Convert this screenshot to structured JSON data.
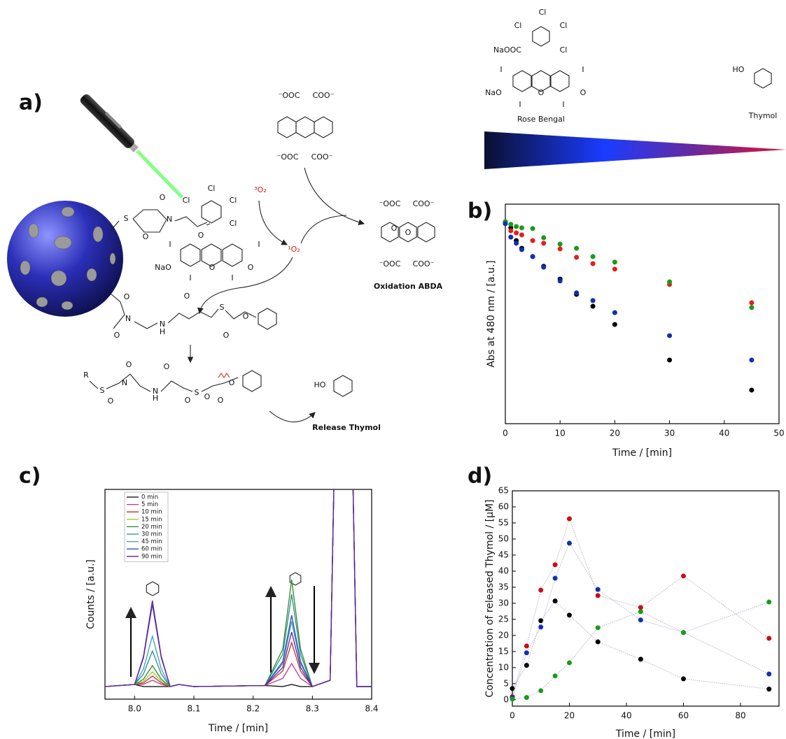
{
  "panels": [
    "a)",
    "b)",
    "c)",
    "d)"
  ],
  "scheme": {
    "labels": [
      "Cl",
      "Cl",
      "Cl",
      "NaOOC",
      "Cl",
      "I",
      "I",
      "NaO",
      "O",
      "O",
      "I",
      "I",
      "Rose Bengal",
      "HO",
      "Thymol",
      "⁻OOC",
      "COO⁻",
      "⁻OOC",
      "COO⁻",
      "⁻OOC",
      "COO⁻",
      "O",
      "O",
      "⁻OOC",
      "COO⁻",
      "Oxidation ABDA",
      "³O₂",
      "¹O₂",
      "Cl",
      "Cl",
      "Cl",
      "Cl",
      "I",
      "I",
      "NaO",
      "O",
      "O",
      "I",
      "I",
      "S",
      "O",
      "N",
      "O",
      "O",
      "O",
      "N",
      "O",
      "N",
      "H",
      "O",
      "S",
      "O",
      "O",
      "R",
      "S",
      "O",
      "N",
      "O",
      "N",
      "H",
      "O",
      "S",
      "O",
      "O",
      "O",
      "O",
      "HO",
      "Release Thymol"
    ]
  },
  "chart_data": [
    {
      "type": "scatter",
      "x_label": "Time / [min]",
      "y_label": "Abs at 480 nm / [a.u.]",
      "x": [
        0,
        1,
        2,
        3,
        5,
        7,
        10,
        13,
        16,
        20,
        30,
        45
      ],
      "series": [
        {
          "color": "#000000",
          "values": [
            0.917,
            0.892,
            0.834,
            0.799,
            0.761,
            0.717,
            0.659,
            0.589,
            0.535,
            0.452,
            0.29,
            0.153
          ]
        },
        {
          "color": "#e0201b",
          "values": [
            0.911,
            0.879,
            0.869,
            0.86,
            0.834,
            0.822,
            0.796,
            0.758,
            0.729,
            0.704,
            0.634,
            0.551
          ]
        },
        {
          "color": "#1a9a1a",
          "values": [
            0.92,
            0.908,
            0.898,
            0.892,
            0.889,
            0.847,
            0.818,
            0.799,
            0.761,
            0.736,
            0.646,
            0.529
          ]
        },
        {
          "color": "#1030b0",
          "values": [
            0.911,
            0.85,
            0.822,
            0.793,
            0.761,
            0.713,
            0.65,
            0.596,
            0.561,
            0.506,
            0.401,
            0.29
          ]
        }
      ],
      "xlim": [
        0,
        50
      ],
      "xticks": [
        0,
        10,
        20,
        30,
        40,
        50
      ],
      "ylim": [
        0,
        1
      ]
    },
    {
      "type": "line",
      "x_label": "Time / [min]",
      "y_label": "Counts / [a.u.]",
      "x": [
        7.95,
        8.0,
        8.015,
        8.03,
        8.045,
        8.06,
        8.075,
        8.1,
        8.22,
        8.25,
        8.265,
        8.28,
        8.3,
        8.33,
        8.343,
        8.362,
        8.375,
        8.4
      ],
      "series": [
        {
          "name": "0 min",
          "color": "#000000",
          "values": [
            6,
            7,
            6,
            6,
            6,
            6,
            7,
            6,
            6.5,
            6,
            7,
            6,
            6,
            9,
            200,
            200,
            6,
            6
          ]
        },
        {
          "name": "5 min",
          "color": "#c2378a",
          "values": [
            6,
            7,
            7.1,
            9,
            7.1,
            6,
            7,
            6,
            6.5,
            9.9,
            17,
            9.9,
            6,
            9,
            200,
            200,
            6,
            6
          ]
        },
        {
          "name": "10 min",
          "color": "#c0302a",
          "values": [
            6,
            7,
            7.8,
            11,
            7.8,
            6,
            7,
            6,
            6.5,
            13.4,
            27,
            13.4,
            6,
            9,
            200,
            200,
            6,
            6
          ]
        },
        {
          "name": "15 min",
          "color": "#9acd32",
          "values": [
            6,
            7,
            8.5,
            13,
            8.5,
            6,
            7,
            6,
            6.5,
            17.9,
            40,
            17.9,
            6,
            9,
            200,
            200,
            6,
            6
          ]
        },
        {
          "name": "20 min",
          "color": "#2e8b2e",
          "values": [
            6,
            7,
            9.5,
            16,
            9.5,
            6,
            7,
            6,
            6.5,
            23.9,
            57,
            23.9,
            6,
            9,
            200,
            200,
            6,
            6
          ]
        },
        {
          "name": "30 min",
          "color": "#2a8c88",
          "values": [
            6,
            7,
            12,
            23,
            12,
            6,
            7,
            6,
            6.5,
            21.4,
            50,
            21.4,
            6,
            9,
            200,
            200,
            6,
            6
          ]
        },
        {
          "name": "45 min",
          "color": "#3a9ec8",
          "values": [
            6,
            7,
            14.4,
            30,
            14.4,
            6,
            7,
            6,
            6.5,
            16.9,
            37,
            16.9,
            6,
            9,
            200,
            200,
            6,
            6
          ]
        },
        {
          "name": "60 min",
          "color": "#2f4fc0",
          "values": [
            6,
            7,
            19.7,
            45,
            19.7,
            6,
            7,
            6,
            6.5,
            17.9,
            40,
            17.9,
            6,
            9,
            200,
            200,
            6,
            6
          ]
        },
        {
          "name": "90 min",
          "color": "#6a1b9a",
          "values": [
            6,
            7,
            20.4,
            47,
            20.4,
            6,
            7,
            6,
            6.5,
            15.1,
            32,
            15.1,
            6,
            9,
            200,
            200,
            6,
            6
          ]
        }
      ],
      "xlim": [
        7.95,
        8.4
      ],
      "xticks": [
        {
          "value": 8,
          "label": "8.0"
        },
        8.1,
        8.2,
        8.3,
        8.4
      ],
      "ylim": [
        0,
        100
      ],
      "legend": "top-left",
      "markers": false
    },
    {
      "type": "line",
      "x_label": "Time / [min]",
      "y_label": "Concentration of released Thymol / [µM]",
      "x": [
        0,
        5,
        10,
        15,
        20,
        30,
        45,
        60,
        90
      ],
      "series": [
        {
          "color": "#000000",
          "values": [
            3.5,
            10.7,
            24.6,
            30.7,
            26.3,
            18,
            12.6,
            6.5,
            3.3
          ]
        },
        {
          "color": "#c81010",
          "values": [
            1,
            16.7,
            34.1,
            42,
            56.3,
            32.4,
            28.7,
            38.5,
            19.1
          ]
        },
        {
          "color": "#1030b0",
          "values": [
            0.7,
            14.6,
            22.6,
            37.8,
            48.7,
            34.3,
            24.8,
            20.9,
            8
          ]
        },
        {
          "color": "#1a9a1a",
          "values": [
            0.2,
            0.7,
            2.8,
            7.4,
            11.5,
            22.4,
            27.4,
            20.9,
            30.4
          ]
        }
      ],
      "xlim": [
        0,
        93.5
      ],
      "xticks": [
        0,
        20,
        40,
        60,
        80
      ],
      "ylim": [
        -2,
        65
      ],
      "yticks": [
        0,
        5,
        10,
        15,
        20,
        25,
        30,
        35,
        40,
        45,
        50,
        55,
        60,
        65
      ],
      "markers": true,
      "line_style": "dotted",
      "line_color": "#b4b4cc"
    }
  ]
}
